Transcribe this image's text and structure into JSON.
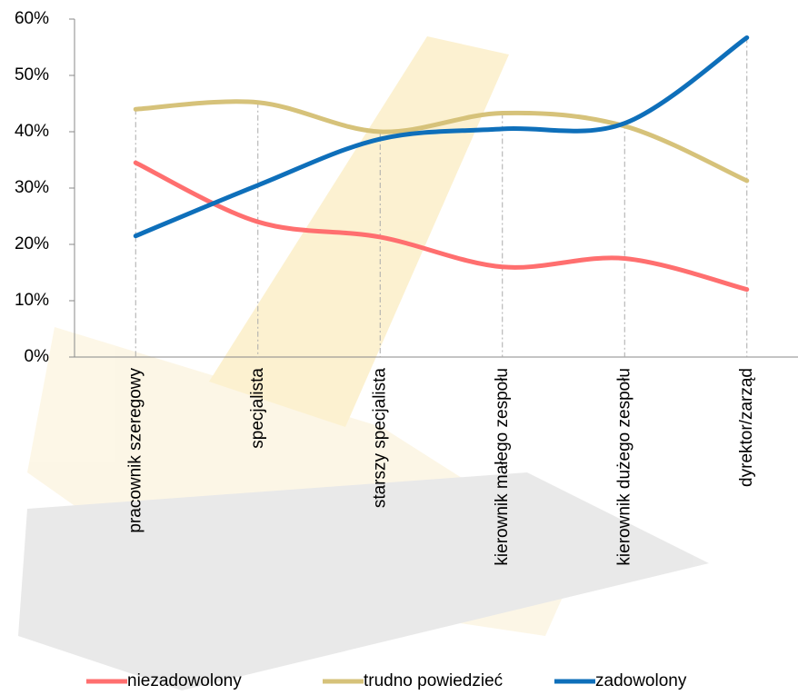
{
  "chart_data": {
    "type": "line",
    "categories": [
      "pracownik szeregowy",
      "specjalista",
      "starszy specjalista",
      "kierownik małego zespołu",
      "kierownik dużego zespołu",
      "dyrektor/zarząd"
    ],
    "series": [
      {
        "name": "niezadowolony",
        "color": "#ff6f6f",
        "values": [
          34.5,
          24,
          21.3,
          16,
          17.5,
          12
        ]
      },
      {
        "name": "trudno powiedzieć",
        "color": "#d6c27a",
        "values": [
          44,
          45.2,
          40,
          43.3,
          41,
          31.3
        ]
      },
      {
        "name": "zadowolony",
        "color": "#0e6fba",
        "values": [
          21.5,
          30.5,
          38.7,
          40.5,
          41.5,
          56.7
        ]
      }
    ],
    "ylim": [
      0,
      60
    ],
    "yticks": [
      {
        "value": 0,
        "label": "0%"
      },
      {
        "value": 10,
        "label": "10%"
      },
      {
        "value": 20,
        "label": "20%"
      },
      {
        "value": 30,
        "label": "30%"
      },
      {
        "value": 40,
        "label": "40%"
      },
      {
        "value": 50,
        "label": "50%"
      },
      {
        "value": 60,
        "label": "60%"
      }
    ],
    "smooth": true,
    "drop_lines": true,
    "legend": "bottom"
  }
}
